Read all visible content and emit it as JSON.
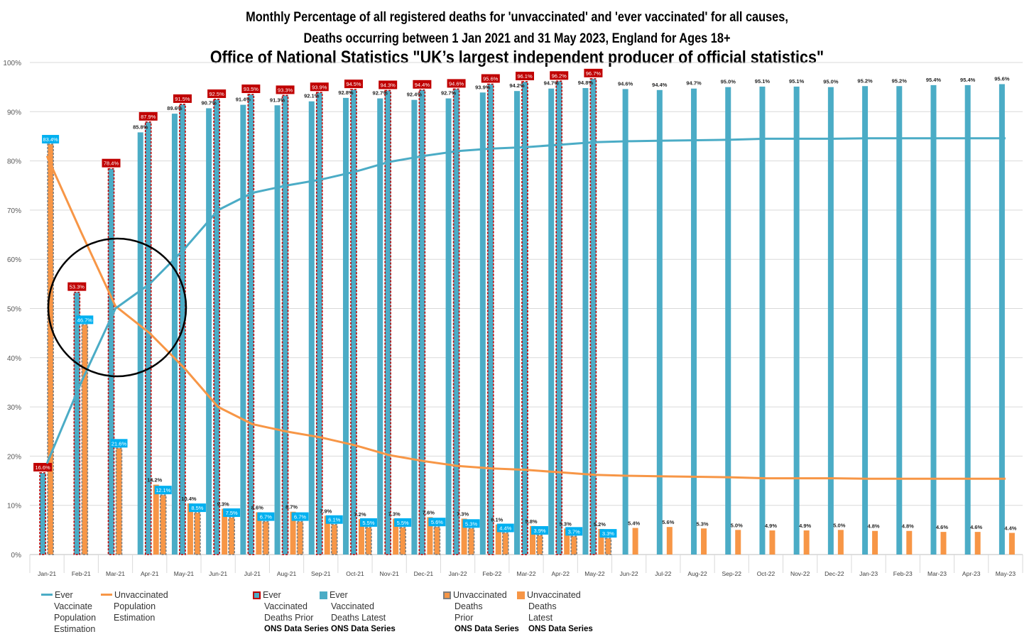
{
  "title_line1": "Monthly Percentage of all registered deaths for 'unvaccinated' and 'ever vaccinated'  for all causes,",
  "title_line2": "Deaths occurring between 1 Jan 2021 and 31 May 2023, England for Ages 18+",
  "title_line3": "Office of National Statistics \"UK’s largest independent producer of official statistics\"",
  "colors": {
    "teal": "#4BACC6",
    "orange": "#F79646",
    "red_label": "#C00000",
    "blue_label": "#00B0F0",
    "grid": "#D9D9D9"
  },
  "legend": {
    "ever_pop": [
      "Ever",
      "Vaccinate",
      "Population",
      "Estimation"
    ],
    "unvax_pop": [
      "Unvaccinated",
      "Population",
      "Estimation"
    ],
    "ever_prior": [
      "Ever",
      "Vaccinated",
      "Deaths Prior"
    ],
    "ever_prior_src": "ONS Data Series",
    "ever_latest": [
      "Ever",
      "Vaccinated",
      "Deaths Latest"
    ],
    "ever_latest_src": "ONS Data Series",
    "unvax_prior": [
      "Unvaccinated",
      "Deaths",
      "Prior"
    ],
    "unvax_prior_src": "ONS Data Series",
    "unvax_latest": [
      "Unvaccinated",
      "Deaths",
      "Latest"
    ],
    "unvax_latest_src": "ONS Data Series"
  },
  "chart_data": {
    "type": "bar",
    "ylim": [
      0,
      100
    ],
    "yticks": [
      "0%",
      "10%",
      "20%",
      "30%",
      "40%",
      "50%",
      "60%",
      "70%",
      "80%",
      "90%",
      "100%"
    ],
    "grid": true,
    "legend_position": "bottom",
    "annotation": "black circle around Feb-21 to Apr-21 where the population estimation lines cross",
    "categories": [
      "Jan-21",
      "Feb-21",
      "Mar-21",
      "Apr-21",
      "May-21",
      "Jun-21",
      "Jul-21",
      "Aug-21",
      "Sep-21",
      "Oct-21",
      "Nov-21",
      "Dec-21",
      "Jan-22",
      "Feb-22",
      "Mar-22",
      "Apr-22",
      "May-22",
      "Jun-22",
      "Jul-22",
      "Aug-22",
      "Sep-22",
      "Oct-22",
      "Nov-22",
      "Dec-22",
      "Jan-23",
      "Feb-23",
      "Mar-23",
      "Apr-23",
      "May-23"
    ],
    "series": [
      {
        "name": "Ever Vaccinate Population Estimation",
        "kind": "line",
        "color": "#4BACC6",
        "values": [
          18.5,
          35,
          50,
          55,
          62,
          70,
          73.5,
          75,
          76.2,
          77.8,
          79.8,
          81,
          82,
          82.5,
          82.8,
          83.3,
          83.8,
          84,
          84.1,
          84.2,
          84.3,
          84.5,
          84.5,
          84.5,
          84.6,
          84.6,
          84.6,
          84.6,
          84.6
        ]
      },
      {
        "name": "Unvaccinated Population Estimation",
        "kind": "line",
        "color": "#F79646",
        "values": [
          81,
          65.5,
          50.5,
          45,
          38,
          30,
          26.5,
          25,
          23.8,
          22.2,
          20.2,
          19,
          18,
          17.5,
          17.2,
          16.7,
          16.2,
          16,
          15.9,
          15.8,
          15.7,
          15.5,
          15.5,
          15.5,
          15.4,
          15.4,
          15.4,
          15.4,
          15.4
        ]
      },
      {
        "name": "Ever Vaccinated Deaths Prior ONS Data Series",
        "kind": "bar",
        "color": "#4BACC6",
        "values": [
          16.6,
          53.3,
          78.4,
          87.9,
          91.5,
          92.5,
          93.5,
          93.3,
          93.9,
          94.5,
          94.3,
          94.4,
          94.6,
          95.6,
          96.1,
          96.2,
          96.7,
          null,
          null,
          null,
          null,
          null,
          null,
          null,
          null,
          null,
          null,
          null,
          null
        ],
        "labels": [
          "16.6%",
          "53.3%",
          "78.4%",
          "87.9%",
          "91.5%",
          "92.5%",
          "93.5%",
          "93.3%",
          "93.9%",
          "94.5%",
          "94.3%",
          "94.4%",
          "94.6%",
          "95.6%",
          "96.1%",
          "96.2%",
          "96.7%",
          "",
          "",
          "",
          "",
          "",
          "",
          "",
          "",
          "",
          "",
          "",
          ""
        ]
      },
      {
        "name": "Ever Vaccinated Deaths Latest ONS Data Series",
        "kind": "bar",
        "color": "#4BACC6",
        "values": [
          null,
          null,
          null,
          85.8,
          89.6,
          90.7,
          91.4,
          91.3,
          92.1,
          92.8,
          92.7,
          92.4,
          92.7,
          93.9,
          94.2,
          94.7,
          94.8,
          94.6,
          94.4,
          94.7,
          95.0,
          95.1,
          95.1,
          95.0,
          95.2,
          95.2,
          95.4,
          95.4,
          95.6
        ],
        "labels": [
          "",
          "",
          "",
          "85.8%",
          "89.6%",
          "90.7%",
          "91.4%",
          "91.3%",
          "92.1%",
          "92.8%",
          "92.7%",
          "92.4%",
          "92.7%",
          "93.9%",
          "94.2%",
          "94.7%",
          "94.8%",
          "94.6%",
          "94.4%",
          "94.7%",
          "95.0%",
          "95.1%",
          "95.1%",
          "95.0%",
          "95.2%",
          "95.2%",
          "95.4%",
          "95.4%",
          "95.6%"
        ]
      },
      {
        "name": "Unvaccinated Deaths Prior ONS Data Series",
        "kind": "bar",
        "color": "#F79646",
        "values": [
          83.4,
          46.7,
          21.6,
          12.1,
          8.5,
          7.5,
          6.7,
          6.7,
          6.1,
          5.5,
          5.5,
          5.6,
          5.3,
          4.4,
          3.9,
          3.7,
          3.3,
          null,
          null,
          null,
          null,
          null,
          null,
          null,
          null,
          null,
          null,
          null,
          null
        ],
        "labels": [
          "83.4%",
          "46.7%",
          "21.6%",
          "12.1%",
          "8.5%",
          "7.5%",
          "6.7%",
          "6.7%",
          "6.1%",
          "5.5%",
          "5.5%",
          "5.6%",
          "5.3%",
          "4.4%",
          "3.9%",
          "3.7%",
          "3.3%",
          "",
          "",
          "",
          "",
          "",
          "",
          "",
          "",
          "",
          "",
          "",
          ""
        ]
      },
      {
        "name": "Unvaccinated Deaths Latest ONS Data Series",
        "kind": "bar",
        "color": "#F79646",
        "values": [
          null,
          null,
          null,
          14.2,
          10.4,
          9.3,
          8.6,
          8.7,
          7.9,
          7.2,
          7.3,
          7.6,
          7.3,
          6.1,
          5.8,
          5.3,
          5.2,
          5.4,
          5.6,
          5.3,
          5.0,
          4.9,
          4.9,
          5.0,
          4.8,
          4.8,
          4.6,
          4.6,
          4.4
        ],
        "labels": [
          "",
          "",
          "",
          "14.2%",
          "10.4%",
          "9.3%",
          "8.6%",
          "8.7%",
          "7.9%",
          "7.2%",
          "7.3%",
          "7.6%",
          "7.3%",
          "6.1%",
          "5.8%",
          "5.3%",
          "5.2%",
          "5.4%",
          "5.6%",
          "5.3%",
          "5.0%",
          "4.9%",
          "4.9%",
          "5.0%",
          "4.8%",
          "4.8%",
          "4.6%",
          "4.6%",
          "4.4%"
        ]
      }
    ]
  }
}
